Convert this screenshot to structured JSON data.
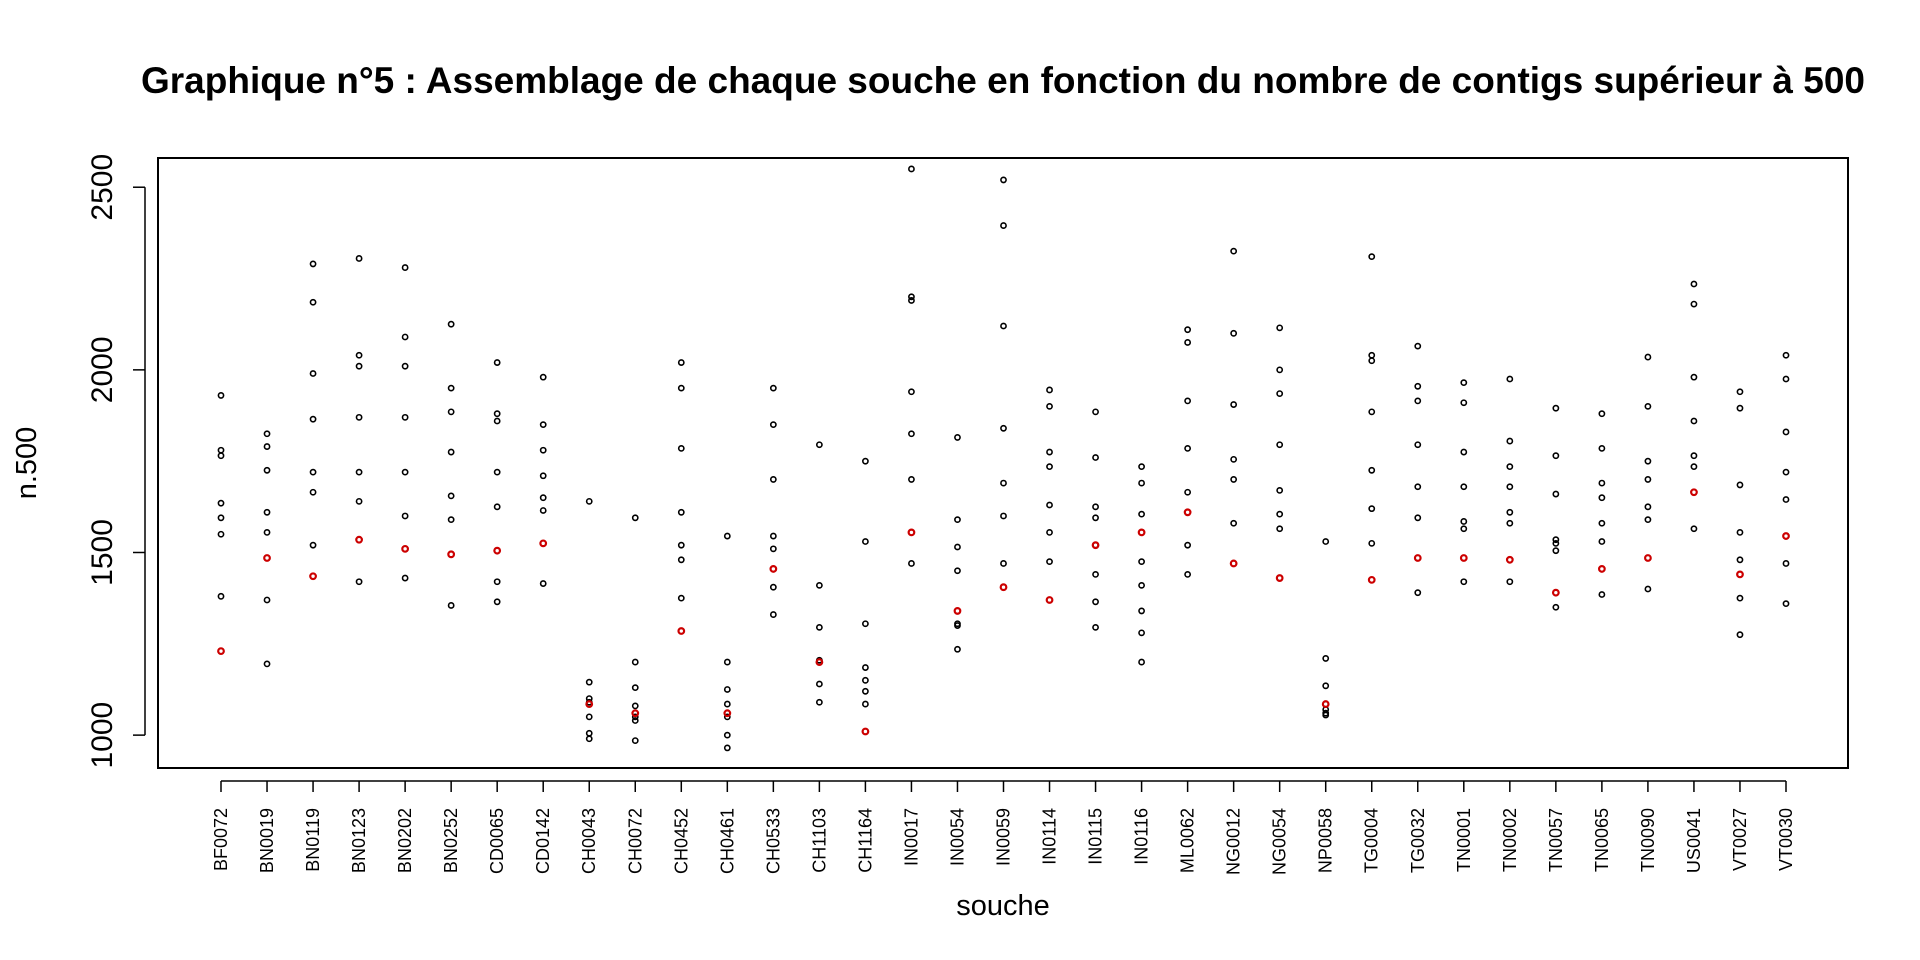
{
  "chart_data": {
    "type": "scatter",
    "title": "Graphique n°5 : Assemblage de chaque souche en fonction du nombre de contigs supérieur à 500",
    "xlabel": "souche",
    "ylabel": "n.500",
    "ylim": [
      910,
      2580
    ],
    "yticks": [
      1000,
      1500,
      2000,
      2500
    ],
    "grid": false,
    "legend": "none",
    "colors": {
      "points": "#000000",
      "highlight": "#cc0000",
      "frame": "#000000"
    },
    "categories": [
      "BF0072",
      "BN0019",
      "BN0119",
      "BN0123",
      "BN0202",
      "BN0252",
      "CD0065",
      "CD0142",
      "CH0043",
      "CH0072",
      "CH0452",
      "CH0461",
      "CH0533",
      "CH1103",
      "CH1164",
      "IN0017",
      "IN0054",
      "IN0059",
      "IN0114",
      "IN0115",
      "IN0116",
      "ML0062",
      "NG0012",
      "NG0054",
      "NP0058",
      "TG0004",
      "TG0032",
      "TN0001",
      "TN0002",
      "TN0057",
      "TN0065",
      "TN0090",
      "US0041",
      "VT0027",
      "VT0030"
    ],
    "series": [
      {
        "color": "#000000",
        "values": [
          [
            1930,
            1780,
            1765,
            1635,
            1595,
            1550,
            1380
          ],
          [
            1825,
            1790,
            1725,
            1610,
            1555,
            1370,
            1195
          ],
          [
            2290,
            2185,
            1990,
            1865,
            1720,
            1665,
            1520
          ],
          [
            2305,
            2040,
            2010,
            1870,
            1720,
            1640,
            1420
          ],
          [
            2280,
            2090,
            2010,
            1870,
            1720,
            1600,
            1430
          ],
          [
            2125,
            1950,
            1885,
            1775,
            1655,
            1590,
            1355
          ],
          [
            2020,
            1880,
            1860,
            1720,
            1625,
            1420,
            1365
          ],
          [
            1980,
            1850,
            1780,
            1710,
            1650,
            1615,
            1415
          ],
          [
            1640,
            1145,
            1100,
            1090,
            1050,
            1005,
            990
          ],
          [
            1595,
            1200,
            1130,
            1080,
            1050,
            1040,
            985
          ],
          [
            2020,
            1950,
            1785,
            1610,
            1520,
            1480,
            1375
          ],
          [
            1545,
            1200,
            1125,
            1085,
            1050,
            1000,
            965
          ],
          [
            1950,
            1850,
            1700,
            1545,
            1510,
            1405,
            1330
          ],
          [
            1795,
            1410,
            1295,
            1205,
            1140,
            1090
          ],
          [
            1750,
            1530,
            1305,
            1185,
            1150,
            1120,
            1085
          ],
          [
            2550,
            2200,
            2190,
            1940,
            1825,
            1700,
            1470
          ],
          [
            1815,
            1590,
            1515,
            1450,
            1305,
            1300,
            1235
          ],
          [
            2520,
            2395,
            2120,
            1840,
            1690,
            1600,
            1470
          ],
          [
            1945,
            1900,
            1775,
            1735,
            1630,
            1555,
            1475
          ],
          [
            1885,
            1760,
            1625,
            1595,
            1520,
            1440,
            1365,
            1295
          ],
          [
            1735,
            1690,
            1605,
            1475,
            1410,
            1340,
            1280,
            1200
          ],
          [
            2110,
            2075,
            1915,
            1785,
            1665,
            1520,
            1440
          ],
          [
            2325,
            2100,
            1905,
            1755,
            1700,
            1580
          ],
          [
            2115,
            2000,
            1935,
            1795,
            1670,
            1605,
            1565
          ],
          [
            1530,
            1210,
            1135,
            1085,
            1070,
            1060,
            1055
          ],
          [
            2310,
            2040,
            2025,
            1885,
            1725,
            1620,
            1525
          ],
          [
            2065,
            1955,
            1915,
            1795,
            1680,
            1595,
            1390
          ],
          [
            1965,
            1910,
            1775,
            1680,
            1585,
            1565,
            1420
          ],
          [
            1975,
            1805,
            1735,
            1680,
            1610,
            1580,
            1420
          ],
          [
            1895,
            1765,
            1660,
            1535,
            1525,
            1505,
            1350
          ],
          [
            1880,
            1785,
            1690,
            1650,
            1580,
            1530,
            1385
          ],
          [
            2035,
            1900,
            1750,
            1700,
            1625,
            1590,
            1400
          ],
          [
            2235,
            2180,
            1980,
            1860,
            1765,
            1735,
            1565
          ],
          [
            1940,
            1895,
            1685,
            1555,
            1480,
            1375,
            1275
          ],
          [
            2040,
            1975,
            1830,
            1720,
            1645,
            1470,
            1360
          ]
        ]
      },
      {
        "color": "#cc0000",
        "values": [
          1230,
          1485,
          1435,
          1535,
          1510,
          1495,
          1505,
          1525,
          1085,
          1060,
          1285,
          1060,
          1455,
          1200,
          1010,
          1555,
          1340,
          1405,
          1370,
          1520,
          1555,
          1610,
          1470,
          1430,
          1085,
          1425,
          1485,
          1485,
          1480,
          1390,
          1455,
          1485,
          1665,
          1440,
          1545
        ]
      }
    ]
  }
}
